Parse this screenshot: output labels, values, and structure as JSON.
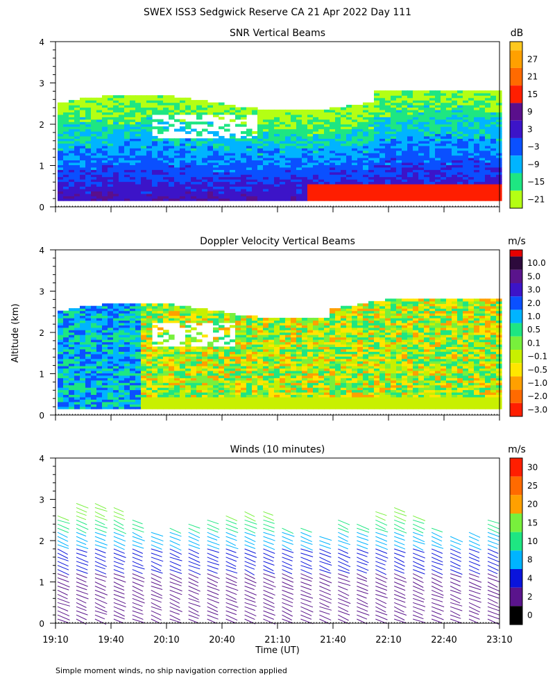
{
  "title": "SWEX ISS3 Sedgwick Reserve CA  21 Apr 2022 Day 111",
  "footnote": "Simple moment winds, no ship navigation correction applied",
  "chart_data": [
    {
      "type": "heatmap",
      "title": "SNR Vertical Beams",
      "ylabel": "",
      "ylim": [
        0,
        4
      ],
      "yticks": [
        "0",
        "1",
        "2",
        "3",
        "4"
      ],
      "colorbar_unit": "dB",
      "colorbar": [
        {
          "label": "27",
          "color": "#ffa000"
        },
        {
          "label": "21",
          "color": "#ff6a00"
        },
        {
          "label": "15",
          "color": "#ff1e00"
        },
        {
          "label": "9",
          "color": "#5a0f8c"
        },
        {
          "label": "3",
          "color": "#3c14c8"
        },
        {
          "label": "−3",
          "color": "#0a50ff"
        },
        {
          "label": "−9",
          "color": "#00b4ff"
        },
        {
          "label": "−15",
          "color": "#1ee682"
        },
        {
          "label": "−21",
          "color": "#b4ff14"
        }
      ],
      "extra_color": "#ffc81e"
    },
    {
      "type": "heatmap",
      "title": "Doppler Velocity Vertical Beams",
      "ylabel": "Altitude (km)",
      "ylim": [
        0,
        4
      ],
      "yticks": [
        "0",
        "1",
        "2",
        "3",
        "4"
      ],
      "colorbar_unit": "m/s",
      "colorbar": [
        {
          "label": "10.0",
          "color": "#2d0a3c"
        },
        {
          "label": "5.0",
          "color": "#5a148c"
        },
        {
          "label": "3.0",
          "color": "#3c14c8"
        },
        {
          "label": "2.0",
          "color": "#0a50ff"
        },
        {
          "label": "1.0",
          "color": "#00b4ff"
        },
        {
          "label": "0.5",
          "color": "#1ee682"
        },
        {
          "label": "0.1",
          "color": "#78f03c"
        },
        {
          "label": "−0.1",
          "color": "#c8f000"
        },
        {
          "label": "−0.5",
          "color": "#ffe600"
        },
        {
          "label": "−1.0",
          "color": "#ffa000"
        },
        {
          "label": "−2.0",
          "color": "#ff6a00"
        },
        {
          "label": "−3.0",
          "color": "#ff1e00"
        }
      ],
      "extra_color": "#e60000"
    },
    {
      "type": "scatter",
      "title": "Winds (10 minutes)",
      "ylabel": "",
      "ylim": [
        0,
        4
      ],
      "yticks": [
        "0",
        "1",
        "2",
        "3",
        "4"
      ],
      "colorbar_unit": "m/s",
      "colorbar": [
        {
          "label": "30",
          "color": "#ff1e00"
        },
        {
          "label": "25",
          "color": "#ff6a00"
        },
        {
          "label": "20",
          "color": "#ffa000"
        },
        {
          "label": "15",
          "color": "#78f03c"
        },
        {
          "label": "10",
          "color": "#1ee682"
        },
        {
          "label": "8",
          "color": "#00b4ff"
        },
        {
          "label": "4",
          "color": "#0a14dc"
        },
        {
          "label": "2",
          "color": "#5a148c"
        },
        {
          "label": "0",
          "color": "#000000"
        }
      ],
      "extra_color": "#000000"
    }
  ],
  "time_axis": {
    "xlabel": "Time (UT)",
    "ticks": [
      "19:10",
      "19:40",
      "20:10",
      "20:40",
      "21:10",
      "21:40",
      "22:10",
      "22:40",
      "23:10"
    ]
  }
}
